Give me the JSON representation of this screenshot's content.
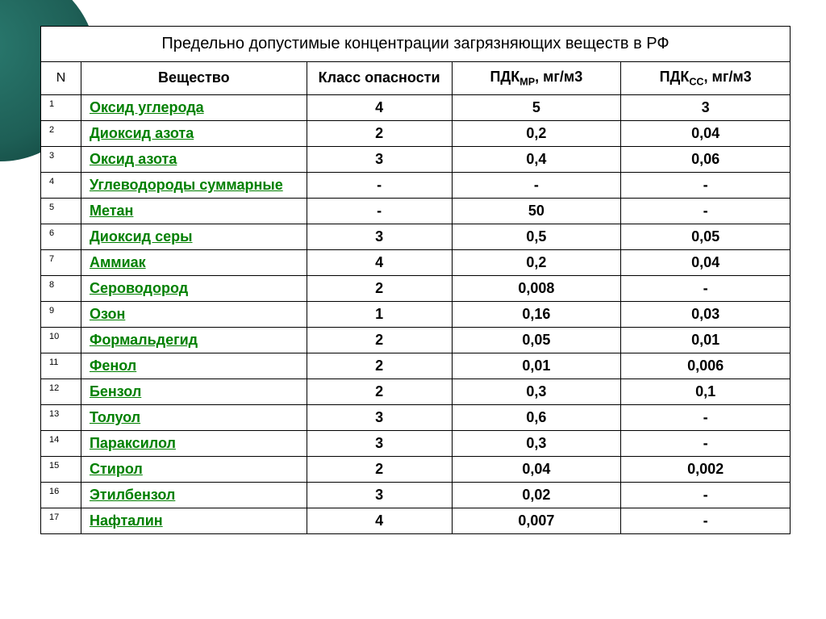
{
  "title": "Предельно допустимые концентрации загрязняющих веществ в РФ",
  "columns": {
    "n": "N",
    "substance": "Вещество",
    "hazard_class": "Класс опасности",
    "pdk_mr_prefix": "ПДК",
    "pdk_mr_sub": "МР",
    "pdk_mr_suffix": ", мг/м3",
    "pdk_cc_prefix": "ПДК",
    "pdk_cc_sub": "СС",
    "pdk_cc_suffix": ", мг/м3"
  },
  "rows": [
    {
      "n": "1",
      "substance": "Оксид углерода",
      "class": "4",
      "mr": "5",
      "cc": "3"
    },
    {
      "n": "2",
      "substance": "Диоксид азота",
      "class": "2",
      "mr": "0,2",
      "cc": "0,04"
    },
    {
      "n": "3",
      "substance": "Оксид азота",
      "class": "3",
      "mr": "0,4",
      "cc": "0,06"
    },
    {
      "n": "4",
      "substance": "Углеводороды суммарные",
      "class": "-",
      "mr": "-",
      "cc": "-"
    },
    {
      "n": "5",
      "substance": "Метан",
      "class": "-",
      "mr": "50",
      "cc": "-"
    },
    {
      "n": "6",
      "substance": "Диоксид серы",
      "class": "3",
      "mr": "0,5",
      "cc": "0,05"
    },
    {
      "n": "7",
      "substance": "Аммиак",
      "class": "4",
      "mr": "0,2",
      "cc": "0,04"
    },
    {
      "n": "8",
      "substance": "Сероводород",
      "class": "2",
      "mr": "0,008",
      "cc": "-"
    },
    {
      "n": "9",
      "substance": "Озон",
      "class": "1",
      "mr": "0,16",
      "cc": "0,03"
    },
    {
      "n": "10",
      "substance": "Формальдегид",
      "class": "2",
      "mr": "0,05",
      "cc": "0,01"
    },
    {
      "n": "11",
      "substance": "Фенол",
      "class": "2",
      "mr": "0,01",
      "cc": "0,006"
    },
    {
      "n": "12",
      "substance": "Бензол",
      "class": "2",
      "mr": "0,3",
      "cc": "0,1"
    },
    {
      "n": "13",
      "substance": "Толуол",
      "class": "3",
      "mr": "0,6",
      "cc": "-"
    },
    {
      "n": "14",
      "substance": "Параксилол",
      "class": "3",
      "mr": "0,3",
      "cc": "-"
    },
    {
      "n": "15",
      "substance": "Стирол",
      "class": "2",
      "mr": "0,04",
      "cc": "0,002"
    },
    {
      "n": "16",
      "substance": "Этилбензол",
      "class": "3",
      "mr": "0,02",
      "cc": "-"
    },
    {
      "n": "17",
      "substance": "Нафталин",
      "class": "4",
      "mr": "0,007",
      "cc": "-"
    }
  ],
  "styles": {
    "link_color": "#008000",
    "border_color": "#000000",
    "bg_color": "#ffffff",
    "circle_color": "#1e5f56",
    "title_fontsize": 20,
    "header_fontsize": 18,
    "cell_fontsize": 18,
    "n_fontsize": 11
  }
}
